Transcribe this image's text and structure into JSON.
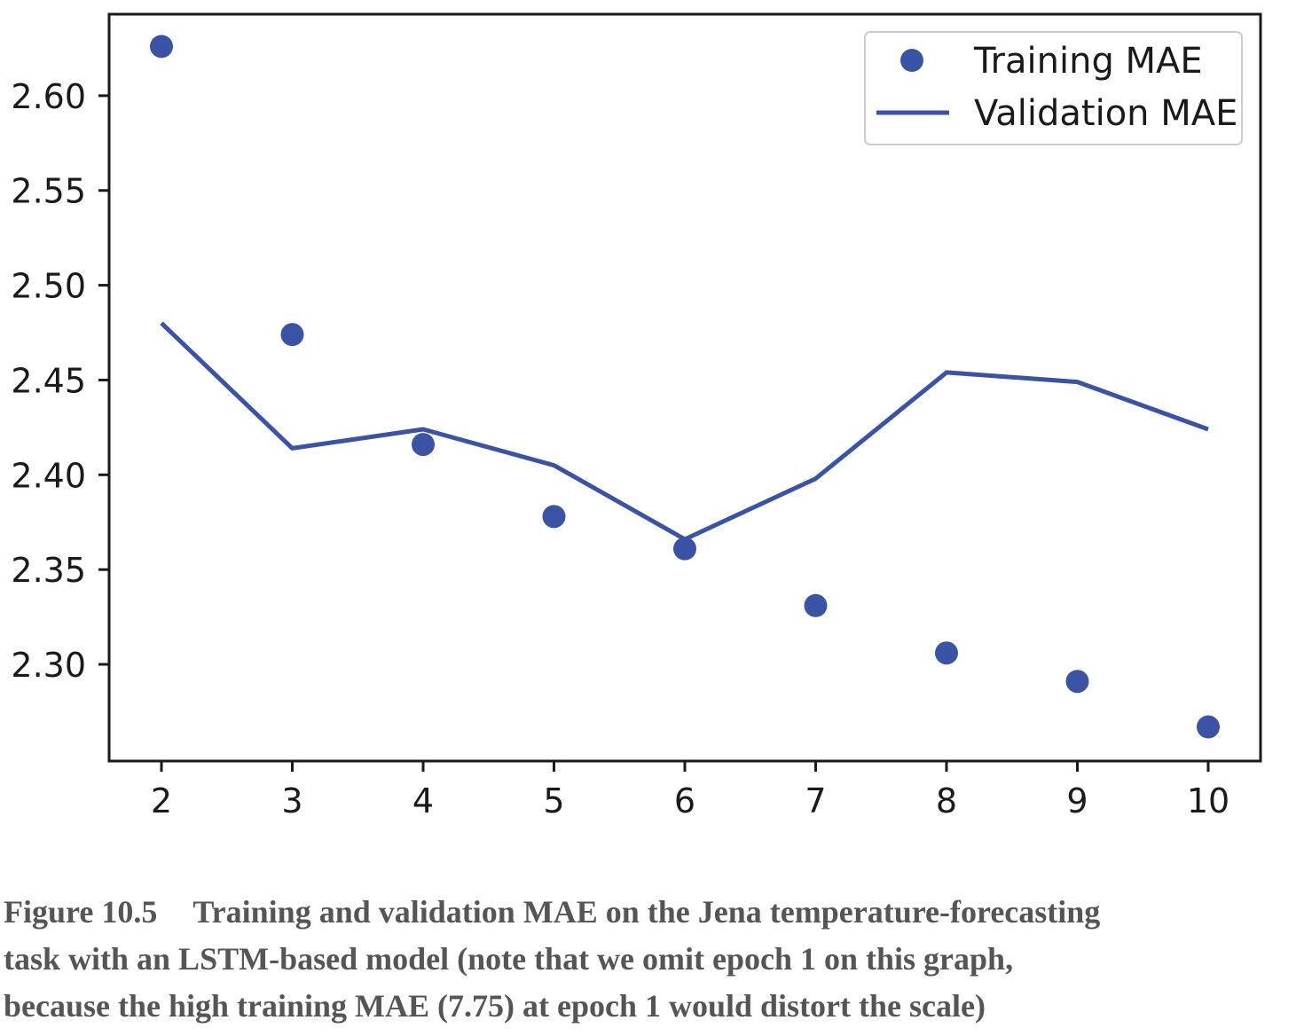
{
  "colors": {
    "series": "#3a53a4",
    "axis": "#1a1a1a",
    "legend_border": "#cccccc",
    "caption": "#555555"
  },
  "chart_data": {
    "type": "line",
    "title": "",
    "xlabel": "",
    "ylabel": "",
    "xlim": [
      1.6,
      10.4
    ],
    "ylim": [
      2.249,
      2.643
    ],
    "x_ticks": [
      2,
      3,
      4,
      5,
      6,
      7,
      8,
      9,
      10
    ],
    "y_ticks": [
      2.3,
      2.35,
      2.4,
      2.45,
      2.5,
      2.55,
      2.6
    ],
    "x_tick_labels": [
      "2",
      "3",
      "4",
      "5",
      "6",
      "7",
      "8",
      "9",
      "10"
    ],
    "y_tick_labels": [
      "2.30",
      "2.35",
      "2.40",
      "2.45",
      "2.50",
      "2.55",
      "2.60"
    ],
    "grid": false,
    "legend_position": "top-right",
    "x": [
      2,
      3,
      4,
      5,
      6,
      7,
      8,
      9,
      10
    ],
    "series": [
      {
        "name": "Training MAE",
        "style": "dots",
        "values": [
          2.626,
          2.474,
          2.416,
          2.378,
          2.361,
          2.331,
          2.306,
          2.291,
          2.267
        ]
      },
      {
        "name": "Validation MAE",
        "style": "line",
        "values": [
          2.48,
          2.414,
          2.424,
          2.405,
          2.366,
          2.398,
          2.454,
          2.449,
          2.424
        ]
      }
    ]
  },
  "caption": {
    "label": "Figure 10.5",
    "lines": [
      "Training and validation MAE on the Jena temperature-forecasting",
      "task with an LSTM-based model (note that we omit epoch 1 on this graph,",
      "because the high training MAE (7.75) at epoch 1 would distort the scale)"
    ]
  }
}
